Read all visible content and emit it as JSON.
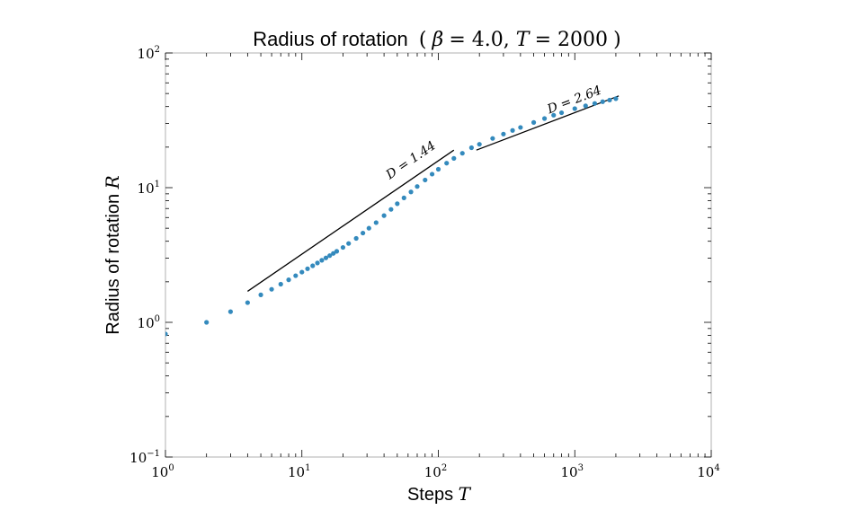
{
  "chart_data": {
    "type": "scatter",
    "title": {
      "text": "Radius of rotation",
      "math_open": "(",
      "beta_symbol": "β",
      "beta_value": " = 4.0, ",
      "t_symbol": "T",
      "t_value": " = 2000",
      "math_close": ")"
    },
    "xlabel": {
      "text": "Steps ",
      "symbol": "T"
    },
    "ylabel": {
      "text": "Radius of rotation ",
      "symbol": "R"
    },
    "xscale": "log",
    "yscale": "log",
    "xlim": [
      1,
      10000
    ],
    "ylim": [
      0.1,
      100
    ],
    "x_ticks": [
      {
        "base": "10",
        "exp": "0"
      },
      {
        "base": "10",
        "exp": "1"
      },
      {
        "base": "10",
        "exp": "2"
      },
      {
        "base": "10",
        "exp": "3"
      },
      {
        "base": "10",
        "exp": "4"
      }
    ],
    "y_ticks": [
      {
        "base": "10",
        "exp": "−1"
      },
      {
        "base": "10",
        "exp": "0"
      },
      {
        "base": "10",
        "exp": "1"
      },
      {
        "base": "10",
        "exp": "2"
      }
    ],
    "grid": false,
    "marker_color": "#348ABD",
    "series": [
      {
        "points": [
          [
            1,
            0.82
          ],
          [
            2,
            1.0
          ],
          [
            3,
            1.2
          ],
          [
            4,
            1.4
          ],
          [
            5,
            1.6
          ],
          [
            6,
            1.76
          ],
          [
            7,
            1.92
          ],
          [
            8,
            2.07
          ],
          [
            9,
            2.22
          ],
          [
            10,
            2.36
          ],
          [
            11,
            2.5
          ],
          [
            12,
            2.63
          ],
          [
            13,
            2.76
          ],
          [
            14,
            2.89
          ],
          [
            15,
            3.01
          ],
          [
            16,
            3.13
          ],
          [
            17,
            3.25
          ],
          [
            18,
            3.37
          ],
          [
            20,
            3.6
          ],
          [
            22,
            3.85
          ],
          [
            25,
            4.2
          ],
          [
            28,
            4.6
          ],
          [
            31,
            5.0
          ],
          [
            35,
            5.5
          ],
          [
            40,
            6.2
          ],
          [
            45,
            6.9
          ],
          [
            50,
            7.6
          ],
          [
            56,
            8.4
          ],
          [
            63,
            9.3
          ],
          [
            70,
            10.2
          ],
          [
            80,
            11.4
          ],
          [
            90,
            12.6
          ],
          [
            100,
            13.7
          ],
          [
            115,
            15.2
          ],
          [
            130,
            16.5
          ],
          [
            150,
            18.0
          ],
          [
            175,
            19.8
          ],
          [
            200,
            21.0
          ],
          [
            250,
            23.2
          ],
          [
            300,
            25.0
          ],
          [
            350,
            26.6
          ],
          [
            400,
            28.0
          ],
          [
            500,
            30.5
          ],
          [
            600,
            32.6
          ],
          [
            700,
            34.5
          ],
          [
            800,
            36.0
          ],
          [
            1000,
            38.6
          ],
          [
            1200,
            40.5
          ],
          [
            1400,
            42.2
          ],
          [
            1600,
            43.5
          ],
          [
            1800,
            44.7
          ],
          [
            2000,
            45.8
          ]
        ]
      }
    ],
    "fit_lines": [
      {
        "label": "D = 1.44",
        "x": [
          4,
          130
        ],
        "y": [
          1.7,
          19.0
        ],
        "label_at": [
          44,
          11.5
        ]
      },
      {
        "label": "D = 2.64",
        "x": [
          190,
          2100
        ],
        "y": [
          19.0,
          48.0
        ],
        "label_at": [
          650,
          35.5
        ]
      }
    ]
  }
}
